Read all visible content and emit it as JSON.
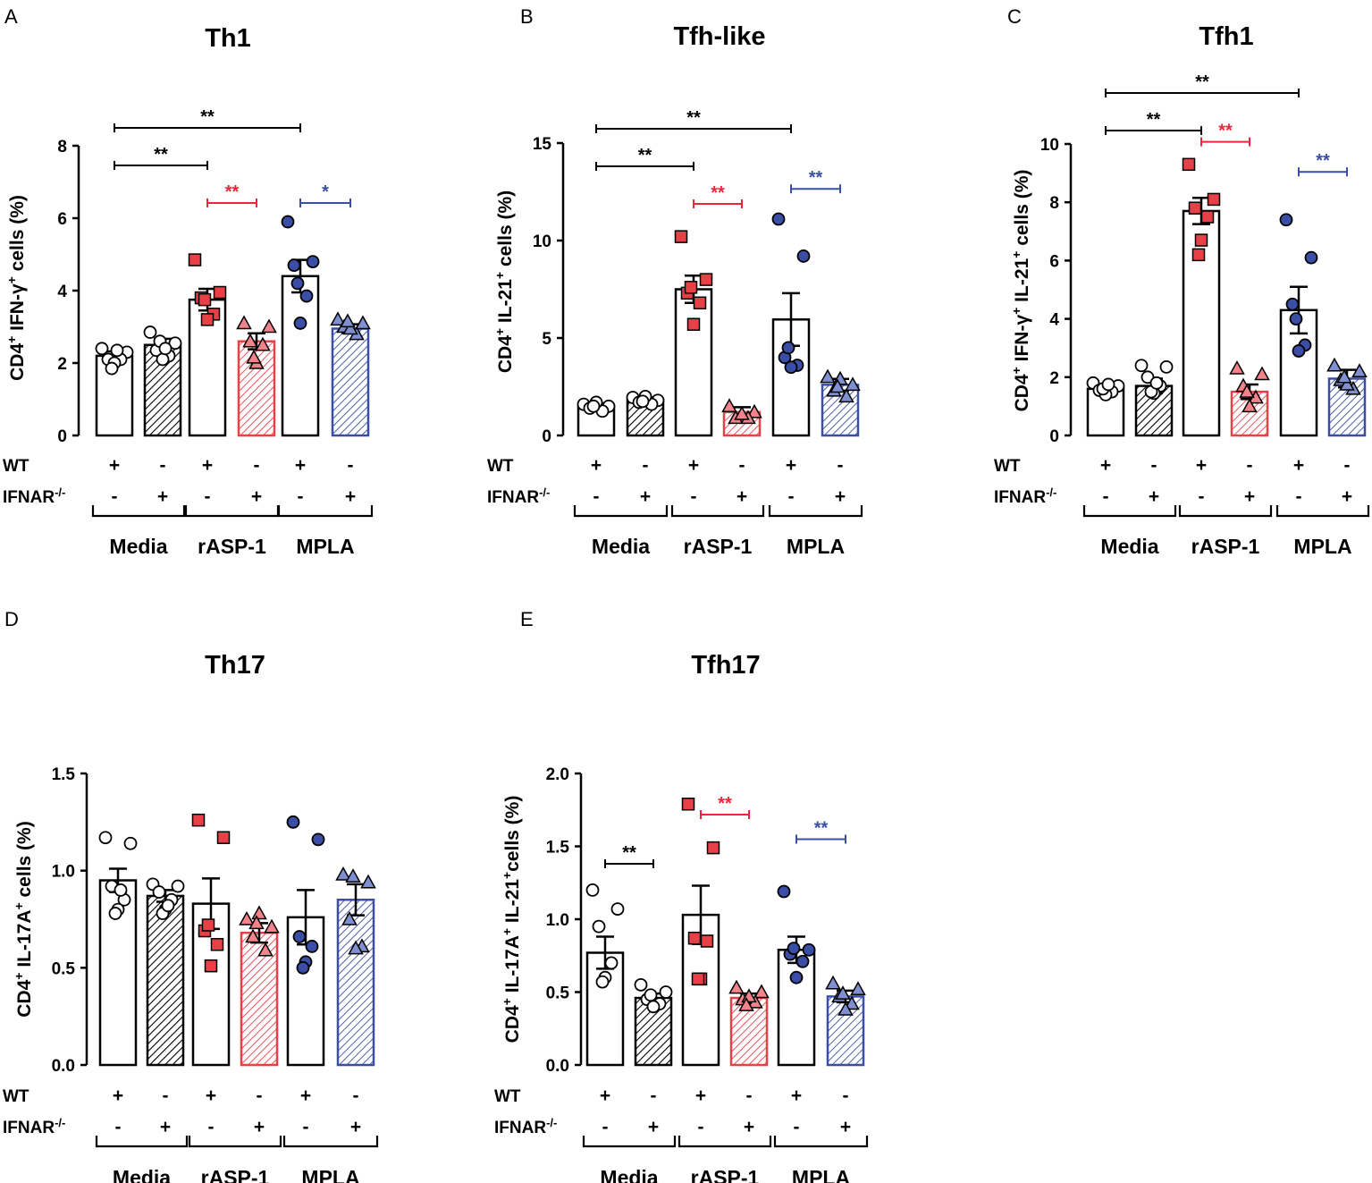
{
  "row_labels": {
    "wt": "WT",
    "ko": "IFNAR",
    "ko_sup": "-/-"
  },
  "groups": [
    "Media",
    "rASP-1",
    "MPLA"
  ],
  "wt_signs": [
    "+",
    "-",
    "+",
    "-",
    "+",
    "-"
  ],
  "ko_signs": [
    "-",
    "+",
    "-",
    "+",
    "-",
    "+"
  ],
  "colors": {
    "black": "#000000",
    "red": "#e8283a",
    "blue": "#3a4ea6",
    "red_fill": "#e84047",
    "red_light": "#f2838a",
    "blue_fill": "#3a4ea6",
    "blue_light": "#7f8fd0"
  },
  "chart_data": [
    {
      "panel": "A",
      "type": "bar",
      "title": "Th1",
      "ylabel": {
        "pre": "CD4",
        "s1": "+",
        "mid": " IFN-γ",
        "s2": "+",
        "post": " cells (%)"
      },
      "ylim": [
        0,
        8
      ],
      "yticks": [
        "0",
        "2",
        "4",
        "6",
        "8"
      ],
      "categories": [
        "Media WT",
        "Media IFNAR-/-",
        "rASP-1 WT",
        "rASP-1 IFNAR-/-",
        "MPLA WT",
        "MPLA IFNAR-/-"
      ],
      "values": [
        2.2,
        2.5,
        3.75,
        2.6,
        4.4,
        2.95
      ],
      "sem": [
        0.12,
        0.17,
        0.3,
        0.22,
        0.45,
        0.12
      ],
      "points": [
        [
          2.4,
          2.3,
          2.1,
          2.1,
          2.0,
          1.85,
          2.35
        ],
        [
          2.85,
          2.55,
          2.35,
          2.2,
          2.1,
          2.6,
          2.4
        ],
        [
          4.85,
          3.95,
          3.8,
          3.35,
          3.2,
          3.75
        ],
        [
          3.1,
          3.0,
          2.6,
          2.5,
          2.0,
          2.15
        ],
        [
          5.9,
          4.8,
          4.7,
          3.85,
          3.1,
          4.2
        ],
        [
          3.2,
          3.1,
          3.0,
          2.8,
          2.95,
          3.15
        ]
      ],
      "significance": [
        {
          "label": "**",
          "from": 0,
          "to": 4,
          "level": 1,
          "color": "black"
        },
        {
          "label": "**",
          "from": 0,
          "to": 2,
          "level": 0,
          "color": "black"
        },
        {
          "label": "**",
          "from": 2,
          "to": 3,
          "level": -1,
          "color": "red"
        },
        {
          "label": "*",
          "from": 4,
          "to": 5,
          "level": -1,
          "color": "blue"
        }
      ]
    },
    {
      "panel": "B",
      "type": "bar",
      "title": "Tfh-like",
      "ylabel": {
        "pre": "CD4",
        "s1": "+",
        "mid": " IL-21",
        "s2": "+",
        "post": " cells (%)"
      },
      "ylim": [
        0,
        15
      ],
      "yticks": [
        "0",
        "5",
        "10",
        "15"
      ],
      "categories": [
        "Media WT",
        "Media IFNAR-/-",
        "rASP-1 WT",
        "rASP-1 IFNAR-/-",
        "MPLA WT",
        "MPLA IFNAR-/-"
      ],
      "values": [
        1.5,
        1.8,
        7.5,
        1.2,
        5.95,
        2.6
      ],
      "sem": [
        0.15,
        0.15,
        0.7,
        0.25,
        1.35,
        0.3
      ],
      "points": [
        [
          1.6,
          1.5,
          1.4,
          1.25,
          1.7,
          1.5
        ],
        [
          1.95,
          1.8,
          1.7,
          1.6,
          2.0,
          1.75
        ],
        [
          10.2,
          8.0,
          7.3,
          6.8,
          5.7,
          7.6
        ],
        [
          1.5,
          1.2,
          0.9,
          0.9,
          1.1
        ],
        [
          11.1,
          9.2,
          4.0,
          3.6,
          3.5,
          4.5
        ],
        [
          3.0,
          2.6,
          2.3,
          2.0,
          2.9,
          2.5
        ]
      ],
      "significance": [
        {
          "label": "**",
          "from": 0,
          "to": 4,
          "level": 1,
          "color": "black"
        },
        {
          "label": "**",
          "from": 0,
          "to": 2,
          "level": 0,
          "color": "black"
        },
        {
          "label": "**",
          "from": 2,
          "to": 3,
          "level": -1,
          "color": "red"
        },
        {
          "label": "**",
          "from": 4,
          "to": 5,
          "level": -0.6,
          "color": "blue"
        }
      ]
    },
    {
      "panel": "C",
      "type": "bar",
      "title": "Tfh1",
      "ylabel": {
        "pre": "CD4",
        "s1": "+",
        "mid": " IFN-γ",
        "s2": "+",
        "mid2": " IL-21",
        "s3": "+",
        "post": " cells (%)"
      },
      "ylim": [
        0,
        10
      ],
      "yticks": [
        "0",
        "2",
        "4",
        "6",
        "8",
        "10"
      ],
      "categories": [
        "Media WT",
        "Media IFNAR-/-",
        "rASP-1 WT",
        "rASP-1 IFNAR-/-",
        "MPLA WT",
        "MPLA IFNAR-/-"
      ],
      "values": [
        1.6,
        1.7,
        7.7,
        1.5,
        4.3,
        1.95
      ],
      "sem": [
        0.15,
        0.25,
        0.45,
        0.25,
        0.8,
        0.3
      ],
      "points": [
        [
          1.8,
          1.7,
          1.55,
          1.5,
          1.4,
          1.6,
          1.75
        ],
        [
          2.4,
          2.35,
          2.0,
          1.7,
          1.45,
          1.5,
          1.8
        ],
        [
          9.3,
          8.1,
          7.8,
          7.5,
          6.7,
          6.2
        ],
        [
          2.3,
          2.1,
          1.7,
          1.3,
          1.0,
          1.5
        ],
        [
          7.4,
          6.1,
          4.5,
          3.1,
          2.9,
          4.0
        ],
        [
          2.4,
          2.2,
          1.9,
          1.6,
          1.75,
          2.0
        ]
      ],
      "significance": [
        {
          "label": "**",
          "from": 0,
          "to": 4,
          "level": 1,
          "color": "black"
        },
        {
          "label": "**",
          "from": 0,
          "to": 2,
          "level": 0,
          "color": "black"
        },
        {
          "label": "**",
          "from": 2,
          "to": 3,
          "level": -0.3,
          "color": "red"
        },
        {
          "label": "**",
          "from": 4,
          "to": 5,
          "level": -1.1,
          "color": "blue"
        }
      ]
    },
    {
      "panel": "D",
      "type": "bar",
      "title": "Th17",
      "ylabel": {
        "pre": "CD4",
        "s1": "+",
        "mid": " IL-17A",
        "s2": "+",
        "post": " cells (%)"
      },
      "ylim": [
        0,
        1.5
      ],
      "yticks": [
        "0.0",
        "0.5",
        "1.0",
        "1.5"
      ],
      "categories": [
        "Media WT",
        "Media IFNAR-/-",
        "rASP-1 WT",
        "rASP-1 IFNAR-/-",
        "MPLA WT",
        "MPLA IFNAR-/-"
      ],
      "values": [
        0.95,
        0.87,
        0.83,
        0.68,
        0.76,
        0.85
      ],
      "sem": [
        0.06,
        0.03,
        0.13,
        0.05,
        0.14,
        0.08
      ],
      "points": [
        [
          1.17,
          1.14,
          0.92,
          0.85,
          0.8,
          0.78,
          0.9
        ],
        [
          0.93,
          0.92,
          0.89,
          0.85,
          0.8,
          0.78,
          0.82
        ],
        [
          1.26,
          1.17,
          0.69,
          0.62,
          0.51,
          0.72
        ],
        [
          0.75,
          0.71,
          0.66,
          0.59,
          0.78,
          0.73
        ],
        [
          1.25,
          1.16,
          0.66,
          0.61,
          0.53,
          0.5
        ],
        [
          0.98,
          0.94,
          0.75,
          0.61,
          0.6,
          0.97
        ]
      ],
      "significance": []
    },
    {
      "panel": "E",
      "type": "bar",
      "title": "Tfh17",
      "ylabel": {
        "pre": "CD4",
        "s1": "+",
        "mid": " IL-17A",
        "s2": "+",
        "mid2": " IL-21",
        "s3": "+",
        "post": "cells (%)"
      },
      "ylim": [
        0,
        2.0
      ],
      "yticks": [
        "0.0",
        "0.5",
        "1.0",
        "1.5",
        "2.0"
      ],
      "categories": [
        "Media WT",
        "Media IFNAR-/-",
        "rASP-1 WT",
        "rASP-1 IFNAR-/-",
        "MPLA WT",
        "MPLA IFNAR-/-"
      ],
      "values": [
        0.77,
        0.46,
        1.03,
        0.46,
        0.79,
        0.47
      ],
      "sem": [
        0.11,
        0.03,
        0.2,
        0.03,
        0.09,
        0.04
      ],
      "points": [
        [
          1.2,
          1.07,
          0.95,
          0.7,
          0.6,
          0.57
        ],
        [
          0.55,
          0.5,
          0.45,
          0.42,
          0.4,
          0.48
        ],
        [
          1.79,
          1.49,
          0.87,
          0.85,
          0.59,
          0.59
        ],
        [
          0.53,
          0.5,
          0.45,
          0.43,
          0.47,
          0.41
        ],
        [
          1.19,
          0.79,
          0.76,
          0.71,
          0.6,
          0.8
        ],
        [
          0.56,
          0.52,
          0.47,
          0.42,
          0.38,
          0.49
        ]
      ],
      "significance": [
        {
          "label": "**",
          "from": 0,
          "to": 1,
          "level": -0.2,
          "color": "black"
        },
        {
          "label": "**",
          "from": 2,
          "to": 3,
          "level": 0.8,
          "color": "red"
        },
        {
          "label": "**",
          "from": 4,
          "to": 5,
          "level": 0.3,
          "color": "blue"
        }
      ]
    }
  ]
}
